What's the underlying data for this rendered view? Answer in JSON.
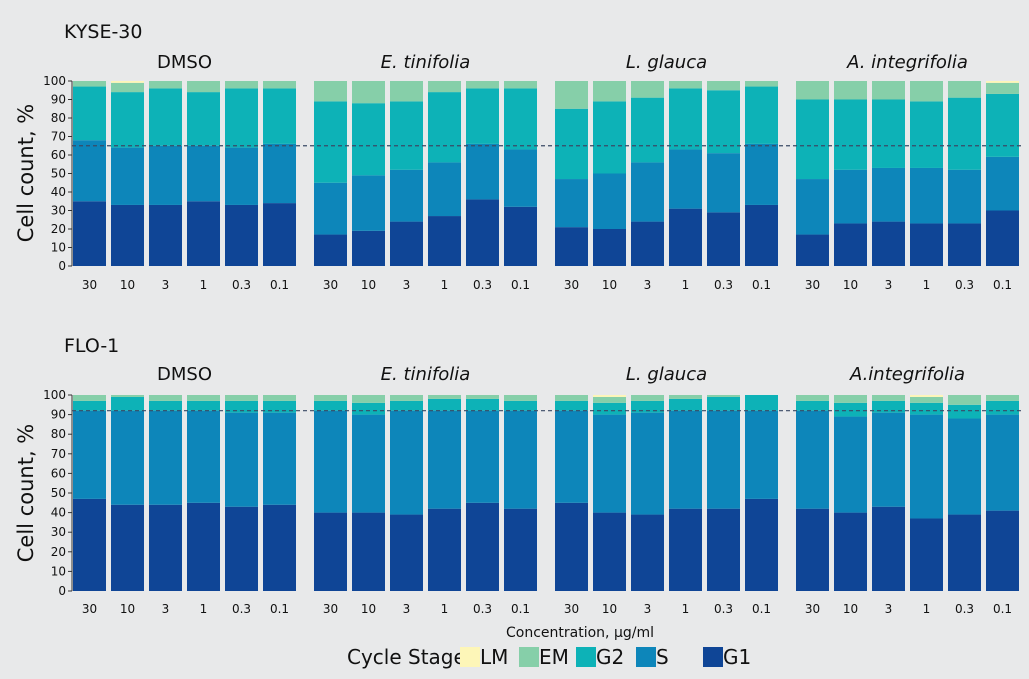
{
  "colors": {
    "background": "#e8e9ea",
    "LM": "#fdf6b8",
    "EM": "#86cfa9",
    "G2": "#0db2b7",
    "S": "#0d86ba",
    "G1": "#0f4596",
    "axis": "#333333",
    "reference_line": "#3a4a66"
  },
  "chart_data": {
    "type": "bar",
    "stacked": true,
    "xlabel": "Concentration, µg/ml",
    "ylabel": "Cell count, %",
    "ylim": [
      0,
      100
    ],
    "yticks": [
      0,
      10,
      20,
      30,
      40,
      50,
      60,
      70,
      80,
      90,
      100
    ],
    "categories": [
      "30",
      "10",
      "3",
      "1",
      "0.3",
      "0.1"
    ],
    "stack_order": [
      "G1",
      "S",
      "G2",
      "EM",
      "LM"
    ],
    "legend": {
      "title": "Cycle Stage",
      "position": "bottom",
      "entries": [
        "LM",
        "EM",
        "G2",
        "S",
        "G1"
      ]
    },
    "panels": [
      {
        "title": "KYSE-30",
        "reference_line": 65,
        "groups": [
          {
            "name": "DMSO",
            "italic": false,
            "series": {
              "G1": [
                35,
                33,
                33,
                35,
                33,
                34
              ],
              "S": [
                33,
                31,
                32,
                30,
                31,
                32
              ],
              "G2": [
                29,
                30,
                31,
                29,
                32,
                30
              ],
              "EM": [
                3,
                5,
                4,
                6,
                4,
                4
              ],
              "LM": [
                0,
                1,
                0,
                0,
                0,
                0
              ]
            }
          },
          {
            "name": "E. tinifolia",
            "italic": true,
            "series": {
              "G1": [
                17,
                19,
                24,
                27,
                36,
                32
              ],
              "S": [
                28,
                30,
                28,
                29,
                30,
                31
              ],
              "G2": [
                44,
                39,
                37,
                38,
                30,
                33
              ],
              "EM": [
                11,
                12,
                11,
                6,
                4,
                4
              ],
              "LM": [
                0,
                0,
                0,
                0,
                0,
                0
              ]
            }
          },
          {
            "name": "L. glauca",
            "italic": true,
            "series": {
              "G1": [
                21,
                20,
                24,
                31,
                29,
                33
              ],
              "S": [
                26,
                30,
                32,
                32,
                32,
                33
              ],
              "G2": [
                38,
                39,
                35,
                33,
                34,
                31
              ],
              "EM": [
                15,
                11,
                9,
                4,
                5,
                3
              ],
              "LM": [
                0,
                0,
                0,
                0,
                0,
                0
              ]
            }
          },
          {
            "name": "A. integrifolia",
            "italic": true,
            "series": {
              "G1": [
                17,
                23,
                24,
                23,
                23,
                30
              ],
              "S": [
                30,
                29,
                29,
                30,
                29,
                29
              ],
              "G2": [
                43,
                38,
                37,
                36,
                39,
                34
              ],
              "EM": [
                10,
                10,
                10,
                11,
                9,
                6
              ],
              "LM": [
                0,
                0,
                0,
                0,
                0,
                1
              ]
            }
          }
        ]
      },
      {
        "title": "FLO-1",
        "reference_line": 92,
        "groups": [
          {
            "name": "DMSO",
            "italic": false,
            "series": {
              "G1": [
                47,
                44,
                44,
                45,
                43,
                44
              ],
              "S": [
                45,
                48,
                48,
                47,
                48,
                47
              ],
              "G2": [
                5,
                7,
                5,
                5,
                6,
                6
              ],
              "EM": [
                3,
                1,
                3,
                3,
                3,
                3
              ],
              "LM": [
                0,
                0,
                0,
                0,
                0,
                0
              ]
            }
          },
          {
            "name": "E. tinifolia",
            "italic": true,
            "series": {
              "G1": [
                40,
                40,
                39,
                42,
                45,
                42
              ],
              "S": [
                52,
                50,
                53,
                50,
                47,
                50
              ],
              "G2": [
                5,
                6,
                5,
                6,
                6,
                5
              ],
              "EM": [
                3,
                4,
                3,
                2,
                2,
                3
              ],
              "LM": [
                0,
                0,
                0,
                0,
                0,
                0
              ]
            }
          },
          {
            "name": "L. glauca",
            "italic": true,
            "series": {
              "G1": [
                45,
                40,
                39,
                42,
                42,
                47
              ],
              "S": [
                47,
                50,
                52,
                50,
                50,
                45
              ],
              "G2": [
                5,
                6,
                6,
                6,
                7,
                8
              ],
              "EM": [
                3,
                3,
                3,
                2,
                1,
                0
              ],
              "LM": [
                0,
                1,
                0,
                0,
                0,
                0
              ]
            }
          },
          {
            "name": "A.integrifolia",
            "italic": true,
            "series": {
              "G1": [
                42,
                40,
                43,
                37,
                39,
                41
              ],
              "S": [
                50,
                49,
                48,
                53,
                49,
                49
              ],
              "G2": [
                5,
                7,
                6,
                6,
                7,
                7
              ],
              "EM": [
                3,
                4,
                3,
                3,
                5,
                3
              ],
              "LM": [
                0,
                0,
                0,
                1,
                0,
                0
              ]
            }
          }
        ]
      }
    ]
  }
}
